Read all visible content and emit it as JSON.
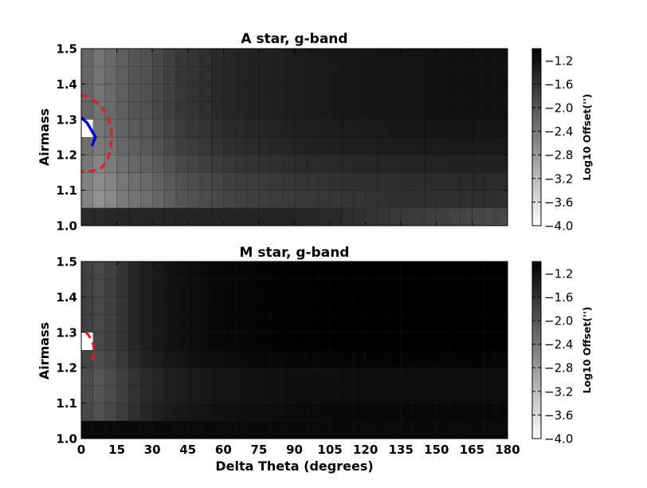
{
  "chart_data": [
    {
      "type": "heatmap",
      "title": "A star, g-band",
      "xlabel": "",
      "ylabel": "Airmass",
      "x_ticks": [
        "0",
        "15",
        "30",
        "45",
        "60",
        "75",
        "90",
        "105",
        "120",
        "135",
        "150",
        "165",
        "180"
      ],
      "y_ticks": [
        "1.0",
        "1.1",
        "1.2",
        "1.3",
        "1.4",
        "1.5"
      ],
      "xlim": [
        0,
        180
      ],
      "ylim": [
        1.0,
        1.5
      ],
      "x_bin_width_deg": 5,
      "y_bin_width": 0.05,
      "colorbar": {
        "label": "Log10 Offset('')",
        "range": [
          -4.0,
          -1.0
        ],
        "ticks": [
          "-1.2",
          "-1.6",
          "-2.0",
          "-2.4",
          "-2.8",
          "-3.2",
          "-3.6",
          "-4.0"
        ],
        "colormap": "gray_r"
      },
      "value_model": {
        "description": "approximate log10 offset per cell",
        "column_values": [
          -2.2,
          -2.35,
          -2.25,
          -2.1,
          -2.0,
          -1.95,
          -1.85,
          -1.75,
          -1.65,
          -1.6,
          -1.55,
          -1.5,
          -1.45,
          -1.42,
          -1.4,
          -1.38,
          -1.36,
          -1.34,
          -1.32,
          -1.3,
          -1.29,
          -1.28,
          -1.27,
          -1.26,
          -1.25,
          -1.24,
          -1.23,
          -1.22,
          -1.22,
          -1.21,
          -1.21,
          -1.2,
          -1.2,
          -1.2,
          -1.2,
          -1.2
        ],
        "row_adjust_bottom_to_top": [
          0.55,
          0.35,
          0.3,
          0.2,
          0.1,
          0.05,
          0.0,
          0.0,
          0.0,
          0.0
        ],
        "bottom_row_values": [
          -1.5,
          -1.48,
          -1.46,
          -1.45,
          -1.44,
          -1.44,
          -1.43,
          -1.43,
          -1.42,
          -1.42,
          -1.42,
          -1.42,
          -1.42,
          -1.42,
          -1.42,
          -1.42,
          -1.42,
          -1.42,
          -1.44,
          -1.45,
          -1.48,
          -1.5,
          -1.52,
          -1.55,
          -1.6,
          -1.62,
          -1.65,
          -1.68,
          -1.7,
          -1.72,
          -1.75,
          -1.78,
          -1.8,
          -1.82,
          -1.85,
          -1.85
        ],
        "min_cell": {
          "x_bin": 0,
          "y_bin": 5,
          "value": -4.0
        }
      },
      "contours": [
        {
          "color": "#e41a1c",
          "style": "dashed",
          "level": "outer"
        },
        {
          "color": "#0000dd",
          "style": "solid",
          "level": "inner"
        }
      ]
    },
    {
      "type": "heatmap",
      "title": "M star, g-band",
      "xlabel": "Delta Theta (degrees)",
      "ylabel": "Airmass",
      "x_ticks": [
        "0",
        "15",
        "30",
        "45",
        "60",
        "75",
        "90",
        "105",
        "120",
        "135",
        "150",
        "165",
        "180"
      ],
      "y_ticks": [
        "1.0",
        "1.1",
        "1.2",
        "1.3",
        "1.4",
        "1.5"
      ],
      "xlim": [
        0,
        180
      ],
      "ylim": [
        1.0,
        1.5
      ],
      "x_bin_width_deg": 5,
      "y_bin_width": 0.05,
      "colorbar": {
        "label": "Log10 Offset('')",
        "range": [
          -4.0,
          -1.0
        ],
        "ticks": [
          "-1.2",
          "-1.6",
          "-2.0",
          "-2.4",
          "-2.8",
          "-3.2",
          "-3.6",
          "-4.0"
        ],
        "colormap": "gray_r"
      },
      "value_model": {
        "description": "approximate log10 offset per cell",
        "column_values": [
          -1.75,
          -1.85,
          -1.75,
          -1.6,
          -1.45,
          -1.35,
          -1.28,
          -1.22,
          -1.18,
          -1.15,
          -1.12,
          -1.1,
          -1.08,
          -1.07,
          -1.06,
          -1.05,
          -1.04,
          -1.03,
          -1.02,
          -1.02,
          -1.01,
          -1.01,
          -1.0,
          -1.0,
          -1.0,
          -1.0,
          -1.0,
          -1.0,
          -1.0,
          -1.0,
          -1.0,
          -1.0,
          -1.0,
          -1.0,
          -1.0,
          -1.0
        ],
        "row_adjust_bottom_to_top": [
          0.0,
          0.1,
          0.15,
          0.15,
          0.05,
          0.0,
          0.0,
          0.0,
          0.0,
          0.0
        ],
        "bottom_row_values_uniform": -1.12,
        "min_cell": {
          "x_bin": 0,
          "y_bin": 5,
          "value": -4.0
        }
      },
      "contours": [
        {
          "color": "#e41a1c",
          "style": "dashed",
          "level": "outer"
        }
      ]
    }
  ]
}
